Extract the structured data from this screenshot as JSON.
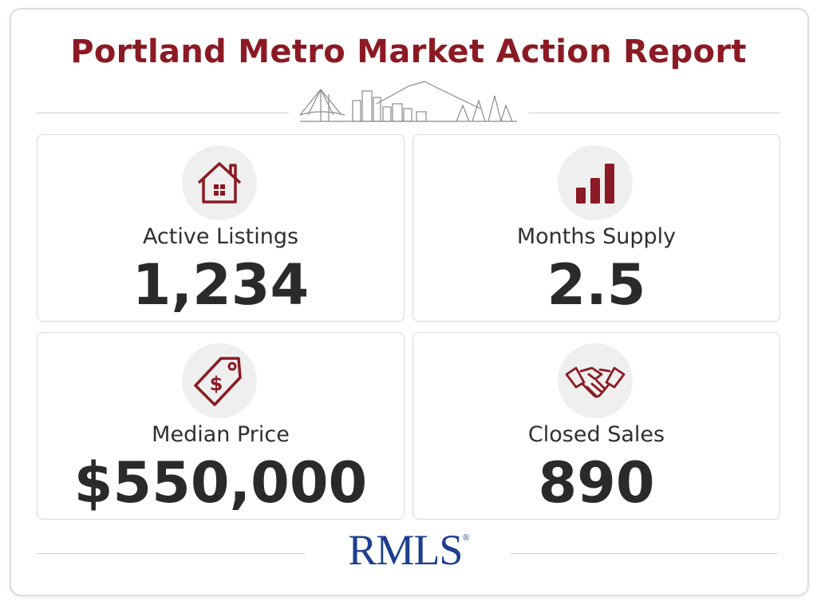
{
  "header": {
    "title": "Portland Metro Market Action Report"
  },
  "cards": [
    {
      "label": "Active Listings",
      "value": "1,234"
    },
    {
      "label": "Months Supply",
      "value": "2.5"
    },
    {
      "label": "Median Price",
      "value": "$550,000"
    },
    {
      "label": "Closed Sales",
      "value": "890"
    }
  ],
  "footer": {
    "logo": "RMLS",
    "mark": "®"
  }
}
